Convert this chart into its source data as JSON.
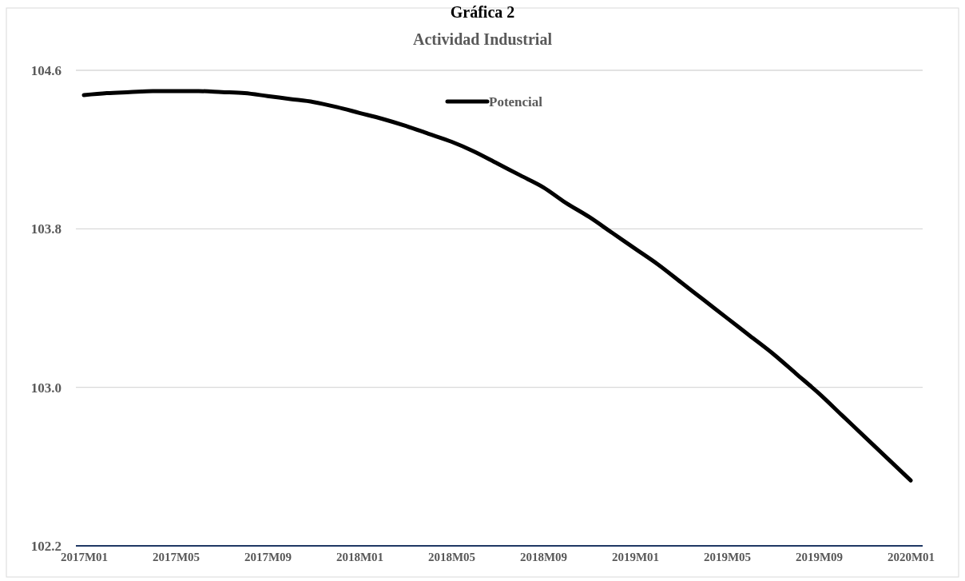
{
  "chart_data": {
    "type": "line",
    "title": "Actividad Industrial",
    "annotations": [
      "Gráfica 2"
    ],
    "categories": [
      "2017M01",
      null,
      null,
      null,
      "2017M05",
      null,
      null,
      null,
      "2017M09",
      null,
      null,
      null,
      "2018M01",
      null,
      null,
      null,
      "2018M05",
      null,
      null,
      null,
      "2018M09",
      null,
      null,
      null,
      "2019M01",
      null,
      null,
      null,
      "2019M05",
      null,
      null,
      null,
      "2019M09",
      null,
      null,
      null,
      "2020M01"
    ],
    "series": [
      {
        "name": "Potencial",
        "color": "#000000",
        "values": [
          104.475,
          104.485,
          104.49,
          104.495,
          104.495,
          104.495,
          104.49,
          104.485,
          104.47,
          104.455,
          104.44,
          104.415,
          104.385,
          104.355,
          104.32,
          104.28,
          104.24,
          104.19,
          104.13,
          104.07,
          104.01,
          103.93,
          103.86,
          103.78,
          103.7,
          103.62,
          103.53,
          103.44,
          103.35,
          103.26,
          103.17,
          103.07,
          102.97,
          102.86,
          102.75,
          102.64,
          102.53
        ]
      }
    ],
    "ylim": [
      102.2,
      104.6
    ],
    "yticks": [
      {
        "value": 102.2,
        "label": "102.2"
      },
      {
        "value": 103,
        "label": "103.0"
      },
      {
        "value": 103.8,
        "label": "103.8"
      },
      {
        "value": 104.6,
        "label": "104.6"
      }
    ],
    "grid": "y",
    "legend": "top",
    "marker": "none",
    "line_style": "solid"
  }
}
